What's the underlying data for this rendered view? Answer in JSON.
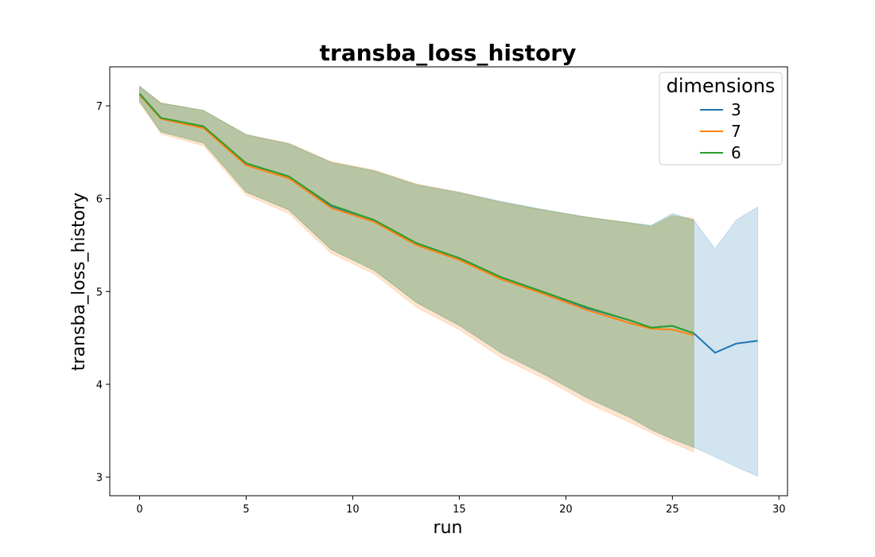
{
  "chart_data": {
    "type": "line",
    "title": "transba_loss_history",
    "xlabel": "run",
    "ylabel": "transba_loss_history",
    "xlim": [
      -1.4,
      30.4
    ],
    "ylim": [
      2.8,
      7.42
    ],
    "xticks": [
      0,
      5,
      10,
      15,
      20,
      25,
      30
    ],
    "yticks": [
      3,
      4,
      5,
      6,
      7
    ],
    "grid": false,
    "legend": {
      "title": "dimensions",
      "placement": "top-right"
    },
    "series": [
      {
        "name": "3",
        "color": "#1f77b4",
        "band_opacity": 0.2,
        "x": [
          0,
          1,
          3,
          5,
          7,
          9,
          11,
          13,
          15,
          17,
          19,
          21,
          23,
          24,
          25,
          26,
          27,
          28,
          29
        ],
        "values": [
          7.13,
          6.87,
          6.77,
          6.38,
          6.24,
          5.92,
          5.77,
          5.52,
          5.36,
          5.15,
          4.99,
          4.82,
          4.69,
          4.61,
          4.63,
          4.55,
          4.34,
          4.44,
          4.47
        ],
        "lower": [
          7.05,
          6.72,
          6.6,
          6.07,
          5.88,
          5.45,
          5.23,
          4.88,
          4.63,
          4.33,
          4.1,
          3.85,
          3.64,
          3.51,
          3.41,
          3.32,
          3.22,
          3.11,
          3.01
        ],
        "upper": [
          7.21,
          7.03,
          6.95,
          6.69,
          6.59,
          6.39,
          6.3,
          6.15,
          6.07,
          5.97,
          5.88,
          5.8,
          5.74,
          5.71,
          5.84,
          5.77,
          5.46,
          5.77,
          5.91
        ]
      },
      {
        "name": "7",
        "color": "#ff7f0e",
        "band_opacity": 0.2,
        "x": [
          0,
          1,
          3,
          5,
          7,
          9,
          11,
          13,
          15,
          17,
          19,
          21,
          23,
          24,
          25,
          26
        ],
        "values": [
          7.12,
          6.86,
          6.76,
          6.36,
          6.22,
          5.9,
          5.75,
          5.5,
          5.34,
          5.13,
          4.97,
          4.8,
          4.66,
          4.6,
          4.59,
          4.53
        ],
        "lower": [
          7.03,
          6.7,
          6.57,
          6.04,
          5.84,
          5.41,
          5.19,
          4.83,
          4.59,
          4.28,
          4.06,
          3.8,
          3.59,
          3.48,
          3.37,
          3.27
        ],
        "upper": [
          7.21,
          7.03,
          6.95,
          6.69,
          6.6,
          6.4,
          6.31,
          6.16,
          6.07,
          5.96,
          5.87,
          5.8,
          5.74,
          5.69,
          5.81,
          5.79
        ]
      },
      {
        "name": "6",
        "color": "#2ca02c",
        "band_opacity": 0.2,
        "x": [
          0,
          1,
          3,
          5,
          7,
          9,
          11,
          13,
          15,
          17,
          19,
          21,
          23,
          24,
          25,
          26
        ],
        "values": [
          7.13,
          6.87,
          6.78,
          6.38,
          6.24,
          5.93,
          5.77,
          5.52,
          5.36,
          5.15,
          4.99,
          4.83,
          4.69,
          4.61,
          4.63,
          4.55
        ],
        "lower": [
          7.05,
          6.72,
          6.6,
          6.07,
          5.88,
          5.45,
          5.23,
          4.88,
          4.64,
          4.34,
          4.11,
          3.86,
          3.65,
          3.52,
          3.41,
          3.32
        ],
        "upper": [
          7.21,
          7.03,
          6.95,
          6.69,
          6.59,
          6.39,
          6.3,
          6.15,
          6.06,
          5.96,
          5.88,
          5.8,
          5.74,
          5.71,
          5.82,
          5.77
        ]
      }
    ]
  }
}
